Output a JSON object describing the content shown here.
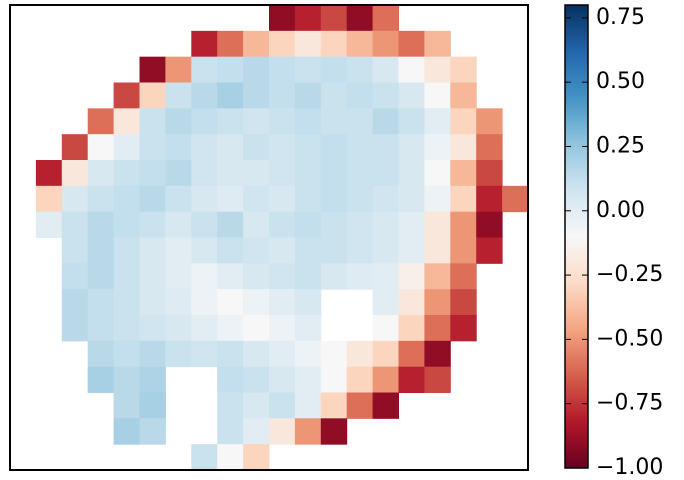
{
  "chart_data": {
    "type": "heatmap",
    "colormap": "RdBu",
    "clim": [
      -1,
      0.8
    ],
    "z": [
      [
        null,
        null,
        null,
        null,
        null,
        null,
        null,
        null,
        null,
        null,
        -0.9,
        -0.8,
        -0.7,
        -0.9,
        -0.6,
        null,
        null,
        null,
        null,
        null
      ],
      [
        null,
        null,
        null,
        null,
        null,
        null,
        null,
        -0.8,
        -0.6,
        -0.4,
        -0.3,
        -0.2,
        -0.3,
        -0.4,
        -0.5,
        -0.6,
        -0.4,
        null,
        null,
        null
      ],
      [
        null,
        null,
        null,
        null,
        null,
        -0.9,
        -0.5,
        0.1,
        0.12,
        0.15,
        0.12,
        0.1,
        0.12,
        0.1,
        0.05,
        -0.1,
        -0.2,
        -0.3,
        null,
        null
      ],
      [
        null,
        null,
        null,
        null,
        -0.7,
        -0.3,
        0.1,
        0.15,
        0.2,
        0.15,
        0.12,
        0.15,
        0.1,
        0.12,
        0.1,
        0.05,
        -0.1,
        -0.4,
        null,
        null
      ],
      [
        null,
        null,
        null,
        -0.6,
        -0.2,
        0.1,
        0.15,
        0.12,
        0.1,
        0.08,
        0.1,
        0.12,
        0.1,
        0.1,
        0.15,
        0.1,
        0.0,
        -0.3,
        -0.5,
        null
      ],
      [
        null,
        null,
        -0.7,
        -0.1,
        0.0,
        0.1,
        0.12,
        0.08,
        0.05,
        0.1,
        0.08,
        0.1,
        0.12,
        0.1,
        0.1,
        0.05,
        -0.05,
        -0.2,
        -0.6,
        null
      ],
      [
        null,
        -0.8,
        -0.2,
        0.05,
        0.1,
        0.12,
        0.15,
        0.08,
        0.05,
        0.05,
        0.08,
        0.1,
        0.12,
        0.1,
        0.1,
        0.05,
        -0.1,
        -0.4,
        -0.7,
        null
      ],
      [
        null,
        -0.3,
        0.05,
        0.1,
        0.12,
        0.15,
        0.1,
        0.05,
        0.02,
        0.08,
        0.05,
        0.1,
        0.12,
        0.1,
        0.08,
        0.05,
        -0.05,
        -0.3,
        -0.8,
        -0.6
      ],
      [
        null,
        0.0,
        0.1,
        0.15,
        0.12,
        0.1,
        0.05,
        0.1,
        0.15,
        0.05,
        0.1,
        0.12,
        0.1,
        0.08,
        0.05,
        0.0,
        -0.2,
        -0.5,
        -0.9,
        null
      ],
      [
        null,
        null,
        0.1,
        0.15,
        0.1,
        0.05,
        0.0,
        0.05,
        0.1,
        0.08,
        0.05,
        0.1,
        0.1,
        0.08,
        0.05,
        0.0,
        -0.2,
        -0.5,
        -0.8,
        null
      ],
      [
        null,
        null,
        0.12,
        0.15,
        0.1,
        0.05,
        0.0,
        -0.05,
        0.0,
        0.05,
        0.08,
        0.1,
        0.05,
        0.02,
        0.0,
        -0.15,
        -0.4,
        -0.6,
        null,
        null
      ],
      [
        null,
        null,
        0.15,
        0.12,
        0.1,
        0.05,
        0.02,
        -0.05,
        -0.1,
        -0.05,
        0.0,
        0.05,
        null,
        null,
        0.0,
        -0.2,
        -0.5,
        -0.7,
        null,
        null
      ],
      [
        null,
        null,
        0.15,
        0.12,
        0.1,
        0.08,
        0.05,
        0.0,
        -0.05,
        -0.1,
        -0.05,
        0.0,
        null,
        null,
        -0.1,
        -0.3,
        -0.6,
        -0.8,
        null,
        null
      ],
      [
        null,
        null,
        null,
        0.15,
        0.12,
        0.15,
        0.1,
        0.08,
        0.1,
        0.05,
        0.0,
        -0.05,
        -0.1,
        -0.2,
        -0.3,
        -0.6,
        -0.9,
        null,
        null,
        null
      ],
      [
        null,
        null,
        null,
        0.2,
        0.15,
        0.18,
        null,
        null,
        0.12,
        0.1,
        0.05,
        0.0,
        -0.1,
        -0.3,
        -0.5,
        -0.8,
        -0.7,
        null,
        null,
        null
      ],
      [
        null,
        null,
        null,
        null,
        0.15,
        0.2,
        null,
        null,
        0.1,
        0.05,
        0.1,
        0.0,
        -0.3,
        -0.6,
        -0.9,
        null,
        null,
        null,
        null,
        null
      ],
      [
        null,
        null,
        null,
        null,
        0.2,
        0.15,
        null,
        null,
        0.1,
        0.0,
        -0.2,
        -0.5,
        -0.9,
        null,
        null,
        null,
        null,
        null,
        null,
        null
      ],
      [
        null,
        null,
        null,
        null,
        null,
        null,
        null,
        0.1,
        -0.1,
        -0.3,
        null,
        null,
        null,
        null,
        null,
        null,
        null,
        null,
        null,
        null
      ]
    ],
    "colorbar_ticks": [
      {
        "value": -1,
        "label": "−1.00"
      },
      {
        "value": -0.75,
        "label": "−0.75"
      },
      {
        "value": -0.5,
        "label": "−0.50"
      },
      {
        "value": -0.25,
        "label": "−0.25"
      },
      {
        "value": 0,
        "label": "0.00"
      },
      0.25,
      {
        "value": 0.5,
        "label": "0.50"
      },
      0.75
    ]
  }
}
